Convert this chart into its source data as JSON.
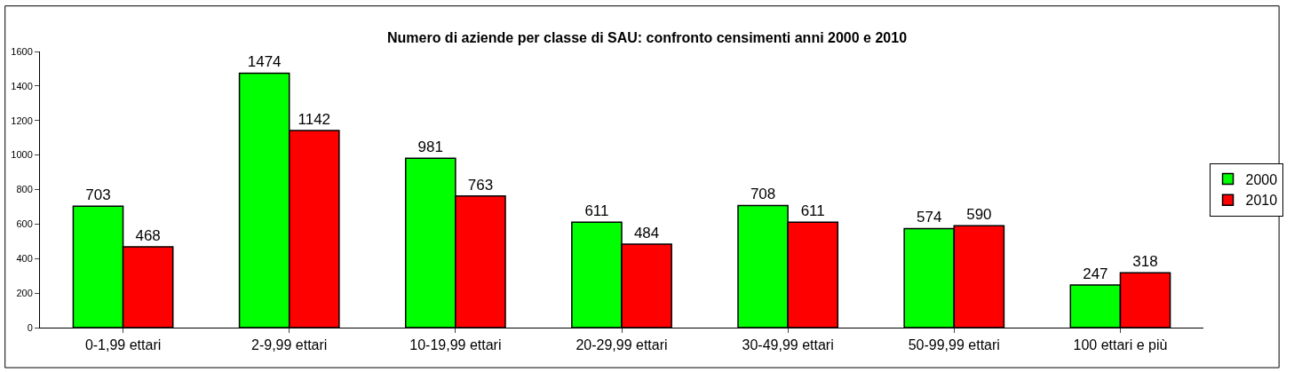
{
  "chart_data": {
    "type": "bar",
    "title": "Numero di aziende per classe di SAU: confronto censimenti anni 2000 e 2010",
    "categories": [
      "0-1,99 ettari",
      "2-9,99 ettari",
      "10-19,99 ettari",
      "20-29,99 ettari",
      "30-49,99 ettari",
      "50-99,99 ettari",
      "100 ettari e più"
    ],
    "series": [
      {
        "name": "2000",
        "color": "#00ff00",
        "values": [
          703,
          1474,
          981,
          611,
          708,
          574,
          247
        ]
      },
      {
        "name": "2010",
        "color": "#ff0000",
        "values": [
          468,
          1142,
          763,
          484,
          611,
          590,
          318
        ]
      }
    ],
    "ylim": [
      0,
      1600
    ],
    "yticks": [
      0,
      200,
      400,
      600,
      800,
      1000,
      1200,
      1400,
      1600
    ],
    "data_labels": true,
    "legend": "right"
  }
}
